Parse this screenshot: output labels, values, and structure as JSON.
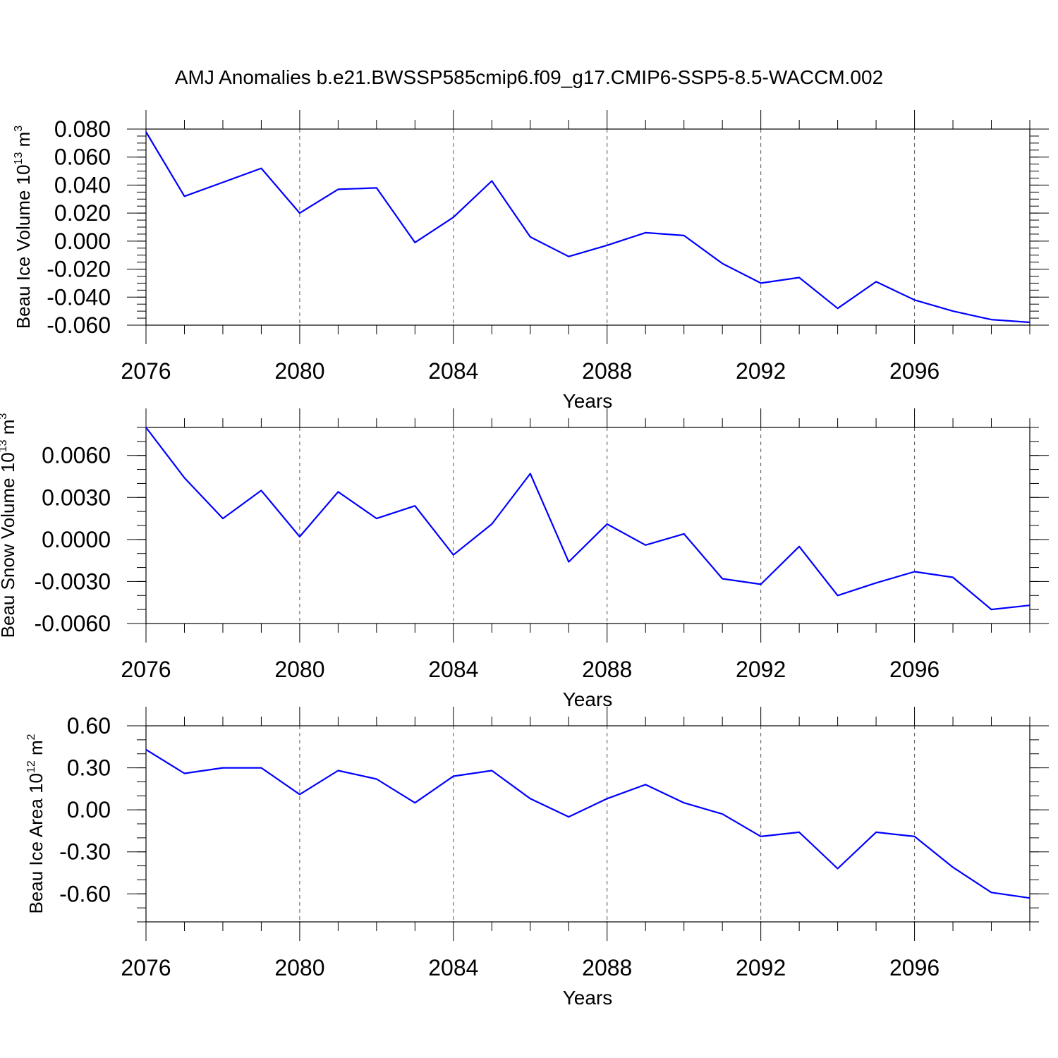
{
  "title": "AMJ Anomalies b.e21.BWSSP585cmip6.f09_g17.CMIP6-SSP5-8.5-WACCM.002",
  "colors": {
    "series": "#0000ff",
    "axis": "#000000",
    "grid": "#555555"
  },
  "chart_data": [
    {
      "type": "line",
      "title": "AMJ Anomalies b.e21.BWSSP585cmip6.f09_g17.CMIP6-SSP5-8.5-WACCM.002",
      "xlabel": "Years",
      "ylabel": "Beau Ice Volume 10",
      "ylabel_sup": "13",
      "ylabel_unit": " m",
      "ylabel_unit_sup": "3",
      "xlim": [
        2076,
        2099
      ],
      "ylim": [
        -0.06,
        0.08
      ],
      "xticks": [
        2076,
        2080,
        2084,
        2088,
        2092,
        2096
      ],
      "yticks": [
        0.08,
        0.06,
        0.04,
        0.02,
        0.0,
        -0.02,
        -0.04,
        -0.06
      ],
      "ytick_labels": [
        "0.080",
        "0.060",
        "0.040",
        "0.020",
        "0.000",
        "-0.020",
        "-0.040",
        "-0.060"
      ],
      "yminor_step": 0.005,
      "x": [
        2076,
        2077,
        2078,
        2079,
        2080,
        2081,
        2082,
        2083,
        2084,
        2085,
        2086,
        2087,
        2088,
        2089,
        2090,
        2091,
        2092,
        2093,
        2094,
        2095,
        2096,
        2097,
        2098,
        2099
      ],
      "series": [
        {
          "name": "Beau Ice Volume",
          "values": [
            0.078,
            0.032,
            0.042,
            0.052,
            0.02,
            0.037,
            0.038,
            -0.001,
            0.017,
            0.043,
            0.003,
            -0.011,
            -0.003,
            0.006,
            0.004,
            -0.016,
            -0.03,
            -0.026,
            -0.048,
            -0.029,
            -0.042,
            -0.05,
            -0.056,
            -0.058
          ]
        }
      ]
    },
    {
      "type": "line",
      "xlabel": "Years",
      "ylabel": "Beau Snow Volume 10",
      "ylabel_sup": "13",
      "ylabel_unit": " m",
      "ylabel_unit_sup": "3",
      "xlim": [
        2076,
        2099
      ],
      "ylim": [
        -0.006,
        0.008
      ],
      "xticks": [
        2076,
        2080,
        2084,
        2088,
        2092,
        2096
      ],
      "yticks": [
        0.006,
        0.003,
        0.0,
        -0.003,
        -0.006
      ],
      "ytick_labels": [
        "0.0060",
        "0.0030",
        "0.0000",
        "-0.0030",
        "-0.0060"
      ],
      "yminor_step": 0.001,
      "x": [
        2076,
        2077,
        2078,
        2079,
        2080,
        2081,
        2082,
        2083,
        2084,
        2085,
        2086,
        2087,
        2088,
        2089,
        2090,
        2091,
        2092,
        2093,
        2094,
        2095,
        2096,
        2097,
        2098,
        2099
      ],
      "series": [
        {
          "name": "Beau Snow Volume",
          "values": [
            0.008,
            0.0044,
            0.0015,
            0.0035,
            0.0002,
            0.0034,
            0.0015,
            0.0024,
            -0.0011,
            0.0011,
            0.0047,
            -0.0016,
            0.0011,
            -0.0004,
            0.0004,
            -0.0028,
            -0.0032,
            -0.0005,
            -0.004,
            -0.0031,
            -0.0023,
            -0.0027,
            -0.005,
            -0.0047
          ]
        }
      ]
    },
    {
      "type": "line",
      "xlabel": "Years",
      "ylabel": "Beau Ice Area 10",
      "ylabel_sup": "12",
      "ylabel_unit": " m",
      "ylabel_unit_sup": "2",
      "xlim": [
        2076,
        2099
      ],
      "ylim": [
        -0.8,
        0.6
      ],
      "xticks": [
        2076,
        2080,
        2084,
        2088,
        2092,
        2096
      ],
      "yticks": [
        0.6,
        0.3,
        0.0,
        -0.3,
        -0.6
      ],
      "ytick_labels": [
        "0.60",
        "0.30",
        "0.00",
        "-0.30",
        "-0.60"
      ],
      "yminor_step": 0.1,
      "x": [
        2076,
        2077,
        2078,
        2079,
        2080,
        2081,
        2082,
        2083,
        2084,
        2085,
        2086,
        2087,
        2088,
        2089,
        2090,
        2091,
        2092,
        2093,
        2094,
        2095,
        2096,
        2097,
        2098,
        2099
      ],
      "series": [
        {
          "name": "Beau Ice Area",
          "values": [
            0.43,
            0.26,
            0.3,
            0.3,
            0.11,
            0.28,
            0.22,
            0.05,
            0.24,
            0.28,
            0.08,
            -0.05,
            0.08,
            0.18,
            0.05,
            -0.03,
            -0.19,
            -0.16,
            -0.42,
            -0.16,
            -0.19,
            -0.41,
            -0.59,
            -0.63
          ]
        }
      ]
    }
  ]
}
